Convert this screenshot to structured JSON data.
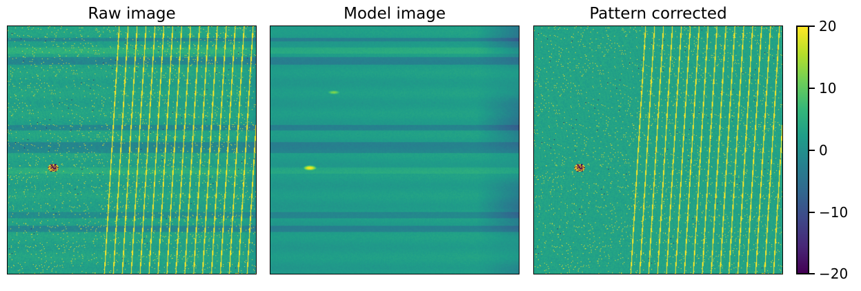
{
  "chart_data": [
    {
      "type": "heatmap",
      "title": "Raw image",
      "colormap": "viridis",
      "vmin": -20,
      "vmax": 20,
      "features": [
        "horizontal banding",
        "diagonal bright streaks",
        "scattered bright pixels"
      ]
    },
    {
      "type": "heatmap",
      "title": "Model image",
      "colormap": "viridis",
      "vmin": -20,
      "vmax": 20,
      "features": [
        "horizontal banding",
        "darker right edge",
        "two bright blobs"
      ]
    },
    {
      "type": "heatmap",
      "title": "Pattern corrected",
      "colormap": "viridis",
      "vmin": -20,
      "vmax": 20,
      "features": [
        "diagonal bright streaks",
        "scattered bright pixels"
      ]
    }
  ],
  "colorbar": {
    "ticks": [
      {
        "value": 20,
        "label": "20"
      },
      {
        "value": 10,
        "label": "10"
      },
      {
        "value": 0,
        "label": "0"
      },
      {
        "value": -10,
        "label": "−10"
      },
      {
        "value": -20,
        "label": "−20"
      }
    ],
    "min": -20,
    "max": 20,
    "colors": [
      "#440154",
      "#482878",
      "#3e4989",
      "#31688e",
      "#26828e",
      "#1f9e89",
      "#35b779",
      "#6ece58",
      "#b5de2b",
      "#fde725"
    ]
  }
}
